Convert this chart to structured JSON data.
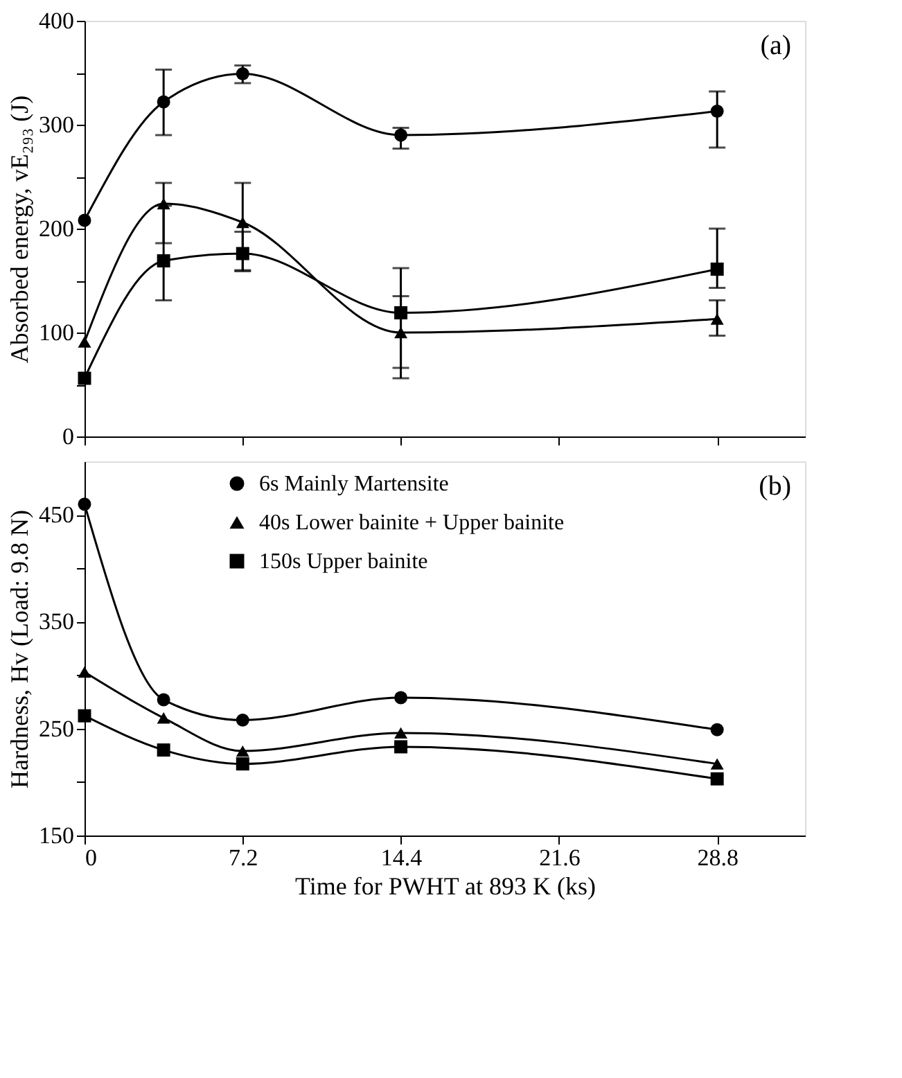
{
  "chart_data": [
    {
      "type": "line",
      "annotations": [
        "(a)"
      ],
      "ylabel": "Absorbed energy, vE₂₉₃ (J)",
      "xlim": [
        0,
        32.8
      ],
      "xticks": [
        0,
        7.2,
        14.4,
        21.6,
        28.8
      ],
      "ylim": [
        0,
        400
      ],
      "yticks": [
        0,
        {
          "value": 50,
          "label": null
        },
        100,
        {
          "value": 150,
          "label": null
        },
        200,
        {
          "value": 250,
          "label": null
        },
        300,
        {
          "value": 350,
          "label": null
        },
        400
      ],
      "tick_labels": "y",
      "grid": false,
      "x": [
        0,
        3.6,
        7.2,
        14.4,
        28.8
      ],
      "series": [
        {
          "color": "#000000",
          "marker": "circle",
          "values": [
            208,
            322,
            349,
            290,
            313
          ],
          "errors": [
            null,
            [
              290,
              353
            ],
            [
              340,
              357
            ],
            [
              277,
              297
            ],
            [
              278,
              332
            ]
          ]
        },
        {
          "color": "#000000",
          "marker": "triangle",
          "values": [
            91,
            224,
            206,
            100,
            113
          ],
          "errors": [
            null,
            [
              186,
              244
            ],
            [
              160,
              244
            ],
            [
              56,
              162
            ],
            [
              97,
              131
            ]
          ]
        },
        {
          "color": "#000000",
          "marker": "square",
          "values": [
            56,
            169,
            176,
            119,
            161
          ],
          "errors": [
            null,
            [
              131,
              222
            ],
            [
              159,
              197
            ],
            [
              66,
              135
            ],
            [
              143,
              200
            ]
          ]
        }
      ]
    },
    {
      "type": "line",
      "annotations": [
        "(b)"
      ],
      "xlabel": "Time for PWHT at 893 K (ks)",
      "ylabel": "Hardness, Hv (Load: 9.8 N)",
      "xlim": [
        0,
        32.8
      ],
      "xticks": [
        0,
        7.2,
        14.4,
        21.6,
        28.8
      ],
      "ylim": [
        150,
        500
      ],
      "yticks": [
        150,
        {
          "value": 200,
          "label": null
        },
        250,
        {
          "value": 300,
          "label": null
        },
        350,
        {
          "value": 400,
          "label": null
        },
        450
      ],
      "grid": false,
      "legend": "top",
      "x": [
        0,
        3.6,
        7.2,
        14.4,
        28.8
      ],
      "series": [
        {
          "name": "6s Mainly Martensite",
          "color": "#000000",
          "marker": "circle",
          "values": [
            460,
            277,
            258,
            279,
            249
          ]
        },
        {
          "name": "40s Lower bainite + Upper bainite",
          "color": "#000000",
          "marker": "triangle",
          "values": [
            303,
            260,
            229,
            246,
            217
          ]
        },
        {
          "name": "150s Upper bainite",
          "color": "#000000",
          "marker": "square",
          "values": [
            262,
            230,
            217,
            233,
            203
          ]
        }
      ]
    }
  ]
}
